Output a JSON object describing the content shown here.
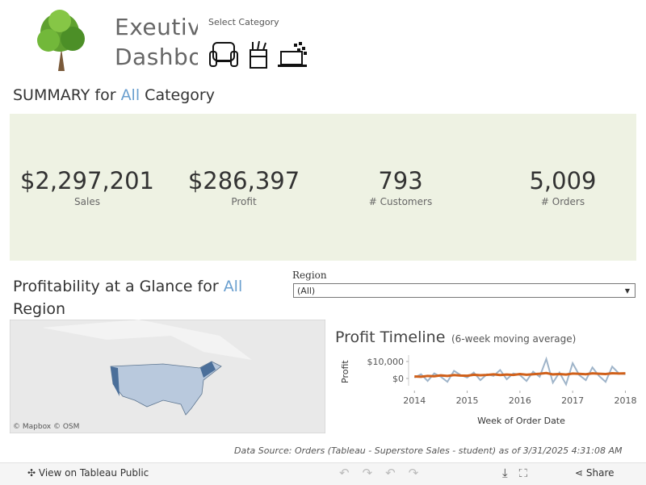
{
  "header": {
    "title": "Exeutive Dashboard",
    "category_label": "Select Category"
  },
  "summary": {
    "prefix": "SUMMARY for",
    "selection": "All",
    "suffix": "Category",
    "kpis": [
      {
        "value": "$2,297,201",
        "label": "Sales"
      },
      {
        "value": "$286,397",
        "label": "Profit"
      },
      {
        "value": "793",
        "label": "# Customers"
      },
      {
        "value": "5,009",
        "label": "# Orders"
      }
    ]
  },
  "profitability": {
    "prefix": "Profitability at a Glance for",
    "selection": "All",
    "suffix": "Region"
  },
  "region_filter": {
    "label": "Region",
    "value": "(All)"
  },
  "map": {
    "attribution": "© Mapbox  © OSM"
  },
  "profit_timeline": {
    "type": "line",
    "title": "Profit Timeline",
    "subtitle": "(6-week moving average)",
    "y_label": "Profit",
    "x_label": "Week of Order Date",
    "xlim": [
      2013.95,
      2018.1
    ],
    "xticks": [
      2014,
      2015,
      2016,
      2017,
      2018
    ],
    "ylim": [
      -4300,
      13800
    ],
    "yticks": [
      {
        "value": 10000,
        "label": "$10,000"
      },
      {
        "value": 0,
        "label": "$0"
      }
    ],
    "x": [
      2014,
      2014.125,
      2014.25,
      2014.375,
      2014.5,
      2014.625,
      2014.75,
      2014.875,
      2015,
      2015.125,
      2015.25,
      2015.375,
      2015.5,
      2015.625,
      2015.75,
      2015.875,
      2016,
      2016.125,
      2016.25,
      2016.375,
      2016.5,
      2016.625,
      2016.75,
      2016.875,
      2017,
      2017.125,
      2017.25,
      2017.375,
      2017.5,
      2017.625,
      2017.75,
      2017.875,
      2018
    ],
    "series": [
      {
        "color": "#9fb4c9",
        "values": [
          500,
          2500,
          -1500,
          3000,
          1000,
          -2000,
          4500,
          2000,
          500,
          3500,
          -1000,
          2500,
          1500,
          5000,
          -500,
          3000,
          2000,
          -1500,
          4000,
          1000,
          11500,
          -2500,
          3500,
          -3500,
          9000,
          2000,
          -1000,
          6500,
          1500,
          -2000,
          7000,
          3000,
          2500
        ]
      },
      {
        "color": "#d0601a",
        "values": [
          1200,
          1000,
          1500,
          1300,
          1800,
          1500,
          2000,
          1700,
          1600,
          2200,
          1900,
          2100,
          2400,
          2000,
          2300,
          2100,
          2600,
          2200,
          2500,
          2800,
          3200,
          2400,
          2600,
          2300,
          2900,
          2700,
          2500,
          3000,
          2800,
          2600,
          3100,
          2900,
          3000
        ]
      }
    ]
  },
  "footer": {
    "source": "Data Source: Orders (Tableau - Superstore Sales - student) as of 3/31/2025 4:31:08 AM"
  },
  "toolbar": {
    "view": "View on Tableau Public",
    "share": "Share"
  }
}
